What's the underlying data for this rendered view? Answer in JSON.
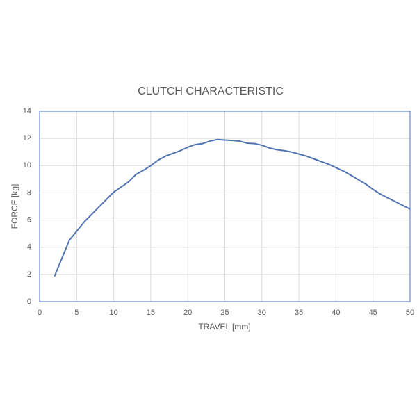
{
  "chart_data": {
    "type": "line",
    "title": "CLUTCH CHARACTERISTIC",
    "x_label": "TRAVEL [mm]",
    "y_label": "FORCE [kg]",
    "x": [
      2,
      4,
      6,
      8,
      10,
      12,
      13,
      14,
      15,
      16,
      17,
      18,
      19,
      20,
      21,
      22,
      23,
      24,
      25,
      26,
      27,
      28,
      29,
      30,
      31,
      32,
      33,
      34,
      35,
      36,
      37,
      38,
      39,
      40,
      41,
      42,
      43,
      44,
      45,
      46,
      48,
      50
    ],
    "series": [
      {
        "name": "FORCE",
        "color": "#4f73b0",
        "values": [
          1.85,
          4.5,
          5.85,
          6.95,
          8.05,
          8.8,
          9.35,
          9.65,
          10.0,
          10.4,
          10.7,
          10.9,
          11.1,
          11.35,
          11.55,
          11.62,
          11.8,
          11.92,
          11.88,
          11.85,
          11.8,
          11.65,
          11.62,
          11.5,
          11.3,
          11.17,
          11.1,
          11.0,
          10.85,
          10.7,
          10.5,
          10.3,
          10.1,
          9.85,
          9.6,
          9.3,
          8.97,
          8.65,
          8.25,
          7.9,
          7.35,
          6.8
        ]
      }
    ],
    "xlim": [
      0,
      50
    ],
    "xticks": [
      0,
      5,
      10,
      15,
      20,
      25,
      30,
      35,
      40,
      45,
      50
    ],
    "ylim": [
      0,
      14
    ],
    "yticks": [
      0,
      2,
      4,
      6,
      8,
      10,
      12,
      14
    ],
    "grid": true
  }
}
